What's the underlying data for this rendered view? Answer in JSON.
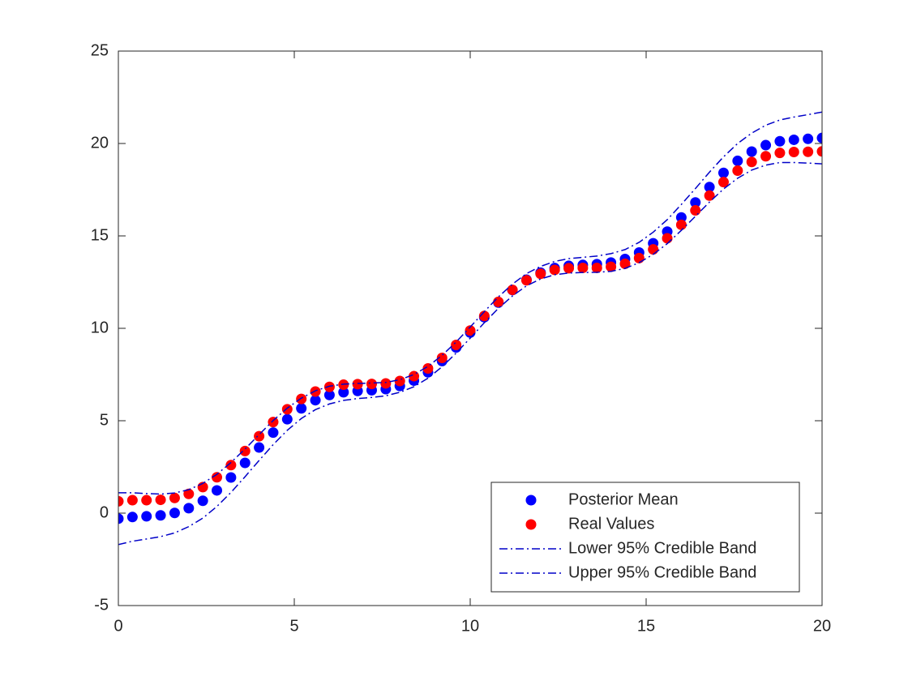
{
  "chart_data": {
    "type": "scatter",
    "x": [
      0,
      0.4,
      0.8,
      1.2,
      1.6,
      2,
      2.4,
      2.8,
      3.2,
      3.6,
      4,
      4.4,
      4.8,
      5.2,
      5.6,
      6,
      6.4,
      6.8,
      7.2,
      7.6,
      8,
      8.4,
      8.8,
      9.2,
      9.6,
      10,
      10.4,
      10.8,
      11.2,
      11.6,
      12,
      12.4,
      12.8,
      13.2,
      13.6,
      14,
      14.4,
      14.8,
      15.2,
      15.6,
      16,
      16.4,
      16.8,
      17.2,
      17.6,
      18,
      18.4,
      18.8,
      19.2,
      19.6,
      20
    ],
    "series": [
      {
        "name": "Posterior Mean",
        "color": "#0000ff",
        "style": "markers",
        "values": [
          -0.3,
          -0.21,
          -0.17,
          -0.12,
          0.01,
          0.27,
          0.67,
          1.23,
          1.93,
          2.72,
          3.55,
          4.36,
          5.08,
          5.67,
          6.11,
          6.39,
          6.54,
          6.61,
          6.65,
          6.71,
          6.88,
          7.17,
          7.62,
          8.23,
          8.96,
          9.77,
          10.6,
          11.39,
          12.07,
          12.63,
          13.01,
          13.26,
          13.38,
          13.43,
          13.47,
          13.56,
          13.75,
          14.1,
          14.6,
          15.23,
          16.0,
          16.81,
          17.64,
          18.41,
          19.06,
          19.56,
          19.91,
          20.12,
          20.2,
          20.25,
          20.3
        ]
      },
      {
        "name": "Real Values",
        "color": "#ff0000",
        "style": "markers",
        "values": [
          0.64,
          0.7,
          0.7,
          0.72,
          0.82,
          1.04,
          1.41,
          1.94,
          2.6,
          3.36,
          4.16,
          4.93,
          5.62,
          6.18,
          6.58,
          6.83,
          6.95,
          6.98,
          6.99,
          7.02,
          7.15,
          7.41,
          7.83,
          8.4,
          9.1,
          9.88,
          10.67,
          11.43,
          12.08,
          12.6,
          12.95,
          13.16,
          13.25,
          13.27,
          13.27,
          13.33,
          13.49,
          13.8,
          14.27,
          14.87,
          15.6,
          16.38,
          17.18,
          17.91,
          18.53,
          19.0,
          19.31,
          19.49,
          19.54,
          19.55,
          19.57
        ]
      },
      {
        "name": "Lower 95% Credible Band",
        "color": "#0000c8",
        "style": "dashdot",
        "values": [
          -1.7,
          -1.52,
          -1.4,
          -1.27,
          -1.07,
          -0.73,
          -0.27,
          0.36,
          1.12,
          1.97,
          2.85,
          3.71,
          4.48,
          5.12,
          5.6,
          5.91,
          6.1,
          6.2,
          6.26,
          6.35,
          6.54,
          6.84,
          7.3,
          7.92,
          8.66,
          9.47,
          10.3,
          11.08,
          11.75,
          12.3,
          12.67,
          12.9,
          12.99,
          13.02,
          13.03,
          13.08,
          13.24,
          13.55,
          14.0,
          14.58,
          15.3,
          16.06,
          16.83,
          17.54,
          18.12,
          18.56,
          18.83,
          18.97,
          18.97,
          18.94,
          18.9
        ]
      },
      {
        "name": "Upper 95% Credible Band",
        "color": "#0000c8",
        "style": "dashdot",
        "values": [
          1.1,
          1.1,
          1.06,
          1.03,
          1.09,
          1.27,
          1.61,
          2.1,
          2.74,
          3.47,
          4.25,
          5.01,
          5.68,
          6.22,
          6.62,
          6.87,
          6.98,
          7.02,
          7.04,
          7.07,
          7.22,
          7.5,
          7.94,
          8.54,
          9.26,
          10.07,
          10.9,
          11.7,
          12.39,
          12.96,
          13.35,
          13.62,
          13.77,
          13.84,
          13.91,
          14.04,
          14.26,
          14.65,
          15.2,
          15.88,
          16.7,
          17.56,
          18.45,
          19.28,
          20.0,
          20.56,
          20.99,
          21.27,
          21.43,
          21.56,
          21.7
        ]
      }
    ],
    "xlim": [
      0,
      20
    ],
    "xticks": [
      0,
      5,
      10,
      15,
      20
    ],
    "ylim": [
      -5,
      25
    ],
    "yticks": [
      -5,
      0,
      5,
      10,
      15,
      20,
      25
    ],
    "grid": false,
    "legend": "southeast"
  }
}
